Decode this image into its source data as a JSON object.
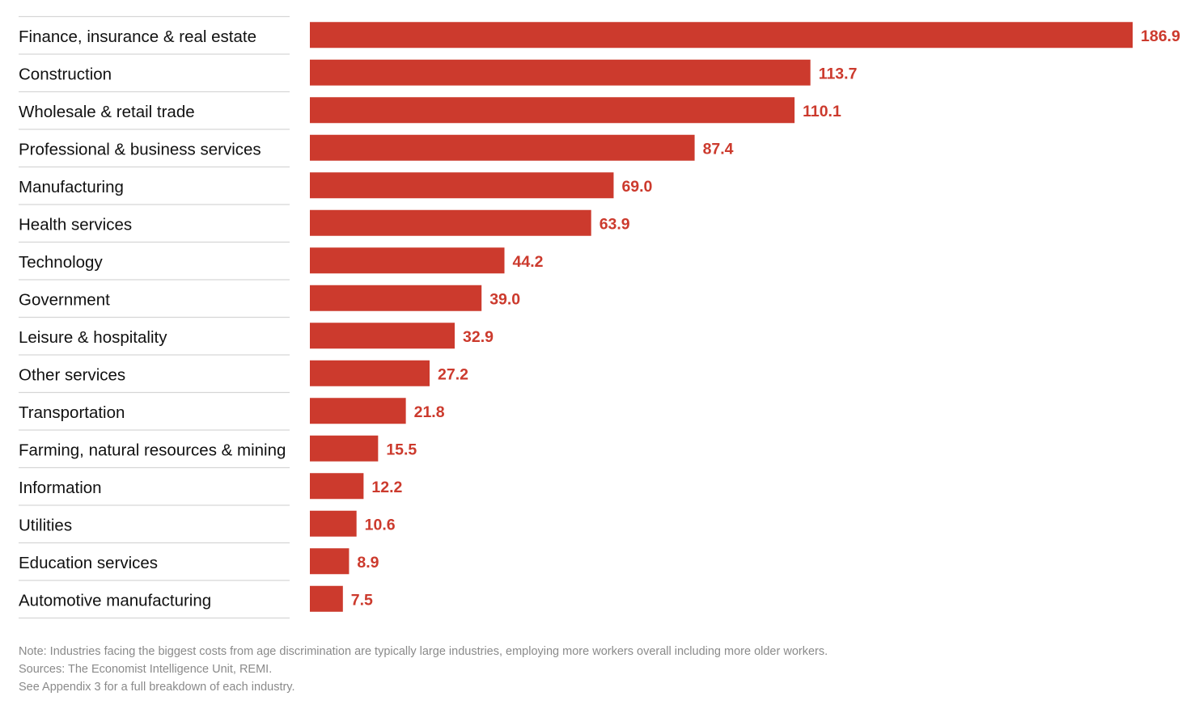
{
  "chart_data": {
    "type": "bar",
    "orientation": "horizontal",
    "title": "",
    "xlabel": "",
    "ylabel": "",
    "categories": [
      "Finance, insurance & real estate",
      "Construction",
      "Wholesale & retail trade",
      "Professional & business services",
      "Manufacturing",
      "Health services",
      "Technology",
      "Government",
      "Leisure & hospitality",
      "Other services",
      "Transportation",
      "Farming, natural resources & mining",
      "Information",
      "Utilities",
      "Education services",
      "Automotive manufacturing"
    ],
    "values": [
      186.9,
      113.7,
      110.1,
      87.4,
      69.0,
      63.9,
      44.2,
      39.0,
      32.9,
      27.2,
      21.8,
      15.5,
      12.2,
      10.6,
      8.9,
      7.5
    ],
    "value_labels": [
      "186.9",
      "113.7",
      "110.1",
      "87.4",
      "69.0",
      "63.9",
      "44.2",
      "39.0",
      "32.9",
      "27.2",
      "21.8",
      "15.5",
      "12.2",
      "10.6",
      "8.9",
      "7.5"
    ],
    "xlim": [
      0,
      186.9
    ],
    "bar_color": "#cc3a2d",
    "value_label_color": "#cc3a2d",
    "grid": false,
    "legend": "none"
  },
  "notes": {
    "note": "Note: Industries facing the biggest costs from age discrimination are typically large industries, employing more workers overall including more older workers.",
    "sources": "Sources: The Economist Intelligence Unit, REMI.",
    "appendix": "See Appendix 3 for a full breakdown of each industry."
  }
}
